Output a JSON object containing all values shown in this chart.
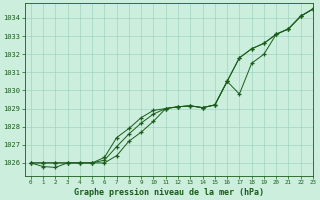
{
  "xlabel": "Graphe pression niveau de la mer (hPa)",
  "xlim": [
    -0.5,
    23
  ],
  "ylim": [
    1025.3,
    1034.8
  ],
  "yticks": [
    1026,
    1027,
    1028,
    1029,
    1030,
    1031,
    1032,
    1033,
    1034
  ],
  "xticks": [
    0,
    1,
    2,
    3,
    4,
    5,
    6,
    7,
    8,
    9,
    10,
    11,
    12,
    13,
    14,
    15,
    16,
    17,
    18,
    19,
    20,
    21,
    22,
    23
  ],
  "bg_color": "#cceedd",
  "grid_color": "#99ccbb",
  "line_color": "#1a5c1a",
  "series1": [
    1026.0,
    1025.8,
    1025.75,
    1026.0,
    1026.0,
    1026.0,
    1026.0,
    1026.4,
    1027.2,
    1027.7,
    1028.3,
    1029.0,
    1029.1,
    1029.15,
    1029.05,
    1029.2,
    1030.5,
    1031.8,
    1032.3,
    1032.6,
    1033.1,
    1033.4,
    1034.1,
    1034.5
  ],
  "series2": [
    1026.0,
    1026.0,
    1026.0,
    1026.0,
    1026.0,
    1026.0,
    1026.15,
    1026.9,
    1027.6,
    1028.2,
    1028.7,
    1029.0,
    1029.1,
    1029.15,
    1029.05,
    1029.2,
    1030.5,
    1031.8,
    1032.3,
    1032.6,
    1033.1,
    1033.4,
    1034.1,
    1034.5
  ],
  "series3": [
    1026.0,
    1026.0,
    1026.0,
    1026.0,
    1026.0,
    1026.0,
    1026.3,
    1027.4,
    1027.9,
    1028.5,
    1028.9,
    1029.0,
    1029.1,
    1029.15,
    1029.05,
    1029.2,
    1030.5,
    1029.8,
    1031.5,
    1032.0,
    1033.1,
    1033.4,
    1034.1,
    1034.5
  ]
}
